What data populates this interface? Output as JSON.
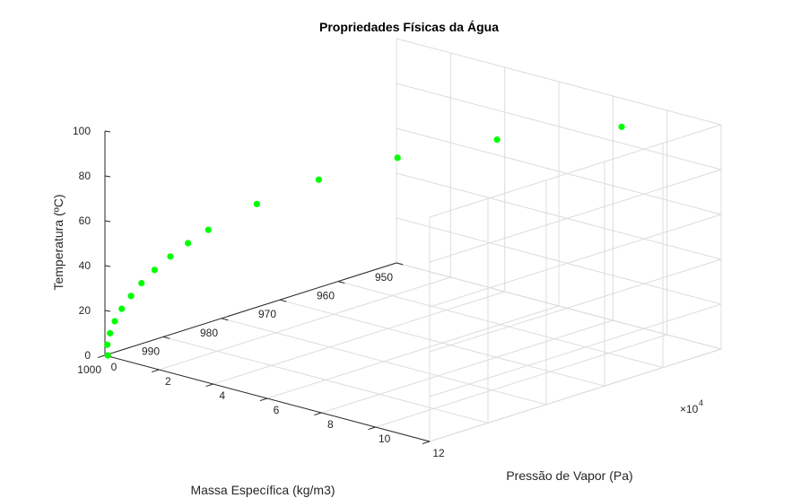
{
  "chart_data": {
    "type": "scatter",
    "projection": "3d",
    "title": "Propriedades Físicas da Água",
    "xlabel": "Pressão de Vapor (Pa)",
    "ylabel": "Massa Específica (kg/m3)",
    "zlabel": "Temperatura (ºC)",
    "x_exponent_label": "×10",
    "x_exponent_power": "4",
    "xlim": [
      0,
      120000
    ],
    "ylim": [
      950,
      1000
    ],
    "zlim": [
      0,
      100
    ],
    "xticks": [
      0,
      20000,
      40000,
      60000,
      80000,
      100000,
      120000
    ],
    "xtick_labels": [
      "0",
      "2",
      "4",
      "6",
      "8",
      "10",
      "12"
    ],
    "yticks": [
      1000,
      990,
      980,
      970,
      960,
      950
    ],
    "ytick_labels": [
      "1000",
      "990",
      "980",
      "970",
      "960",
      "950"
    ],
    "zticks": [
      0,
      20,
      40,
      60,
      80,
      100
    ],
    "ztick_labels": [
      "0",
      "20",
      "40",
      "60",
      "80",
      "100"
    ],
    "grid": true,
    "marker_color": "#00ff00",
    "points": [
      {
        "x": 611,
        "y": 999.8,
        "z": 0
      },
      {
        "x": 872,
        "y": 1000.0,
        "z": 5
      },
      {
        "x": 1228,
        "y": 999.7,
        "z": 10
      },
      {
        "x": 1705,
        "y": 999.1,
        "z": 15
      },
      {
        "x": 2338,
        "y": 998.2,
        "z": 20
      },
      {
        "x": 3169,
        "y": 997.0,
        "z": 25
      },
      {
        "x": 4246,
        "y": 995.7,
        "z": 30
      },
      {
        "x": 5628,
        "y": 994.1,
        "z": 35
      },
      {
        "x": 7383,
        "y": 992.2,
        "z": 40
      },
      {
        "x": 9593,
        "y": 990.2,
        "z": 45
      },
      {
        "x": 12350,
        "y": 988.0,
        "z": 50
      },
      {
        "x": 19940,
        "y": 983.2,
        "z": 60
      },
      {
        "x": 31190,
        "y": 977.8,
        "z": 70
      },
      {
        "x": 47390,
        "y": 971.8,
        "z": 80
      },
      {
        "x": 70140,
        "y": 965.3,
        "z": 90
      },
      {
        "x": 101330,
        "y": 958.4,
        "z": 100
      }
    ]
  }
}
